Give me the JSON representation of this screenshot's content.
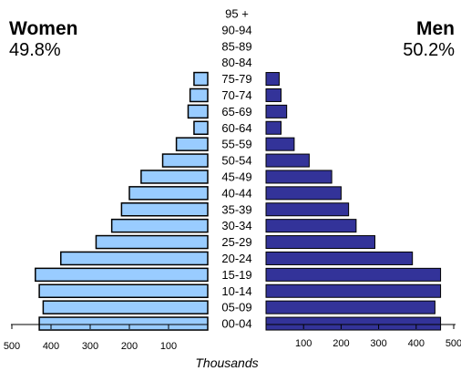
{
  "chart_data": {
    "type": "bar",
    "orientation": "horizontal",
    "subtype": "population-pyramid",
    "xlabel": "Thousands",
    "age_groups": [
      "95 +",
      "90-94",
      "85-89",
      "80-84",
      "75-79",
      "70-74",
      "65-69",
      "60-64",
      "55-59",
      "50-54",
      "45-49",
      "40-44",
      "35-39",
      "30-34",
      "25-29",
      "20-24",
      "15-19",
      "10-14",
      "05-09",
      "00-04"
    ],
    "series": [
      {
        "name": "Women",
        "share": "49.8%",
        "values": [
          0,
          0,
          0,
          0,
          35,
          45,
          50,
          35,
          80,
          115,
          170,
          200,
          220,
          245,
          285,
          375,
          440,
          430,
          420,
          430
        ],
        "color": "#99CCFF"
      },
      {
        "name": "Men",
        "share": "50.2%",
        "values": [
          0,
          0,
          0,
          0,
          35,
          40,
          55,
          40,
          75,
          115,
          175,
          200,
          220,
          240,
          290,
          390,
          465,
          465,
          450,
          465
        ],
        "color": "#333399"
      }
    ],
    "left_ticks": [
      "500",
      "400",
      "300",
      "200",
      "100"
    ],
    "right_ticks": [
      "100",
      "200",
      "300",
      "400",
      "500"
    ],
    "xlim": [
      0,
      500
    ],
    "grid": false,
    "legend": "none"
  }
}
